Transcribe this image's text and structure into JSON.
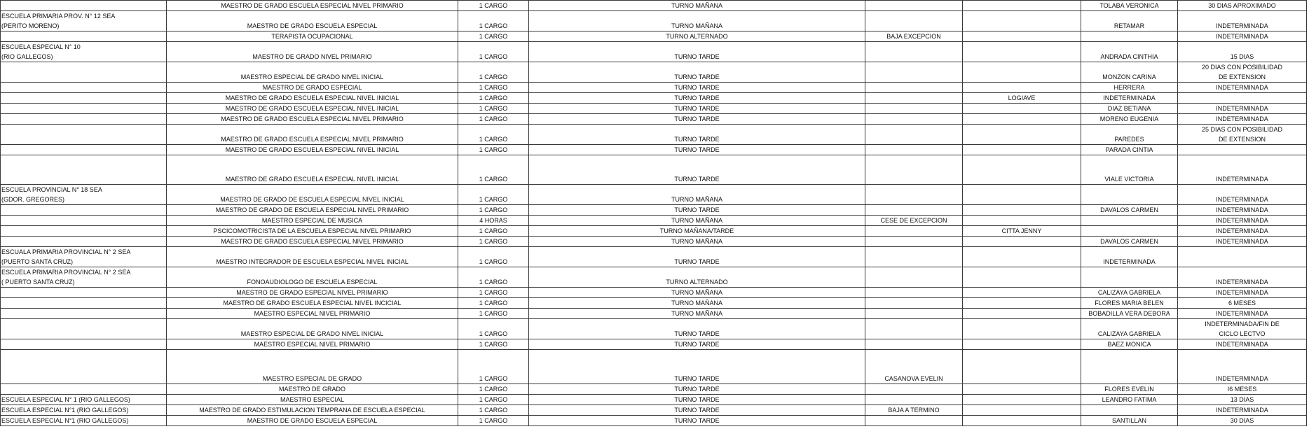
{
  "rows": [
    {
      "h": "h1",
      "cells": [
        "",
        "MAESTRO DE GRADO ESCUELA ESPECIAL NIVEL PRIMARIO",
        "1 CARGO",
        "TURNO MAÑANA",
        "",
        "",
        "TOLABA VERONICA",
        "30 DIAS APROXIMADO"
      ]
    },
    {
      "h": "h2",
      "cells": [
        "ESCUELA PRIMARIA PROV. N° 12 SEA\n(PERITO MORENO)",
        "MAESTRO DE GRADO ESCUELA ESPECIAL",
        "1 CARGO",
        "TURNO MAÑANA",
        "",
        "",
        "RETAMAR",
        "INDETERMINADA"
      ]
    },
    {
      "h": "h1",
      "cells": [
        "",
        "TERAPISTA OCUPACIONAL",
        "1 CARGO",
        "TURNO ALTERNADO",
        "BAJA EXCEPCION",
        "",
        "",
        "INDETERMINADA"
      ]
    },
    {
      "h": "h2",
      "cells": [
        "ESCUELA ESPECIAL N° 10\n(RIO GALLEGOS)",
        "MAESTRO DE GRADO NIVEL PRIMARIO",
        "1 CARGO",
        "TURNO TARDE",
        "",
        "",
        "ANDRADA CINTHIA",
        "15 DIAS"
      ]
    },
    {
      "h": "h2",
      "cells": [
        "",
        "MAESTRO ESPECIAL DE GRADO NIVEL INICIAL",
        "1 CARGO",
        "TURNO TARDE",
        "",
        "",
        "MONZON CARINA",
        "20 DIAS CON POSIBILIDAD\nDE EXTENSION"
      ]
    },
    {
      "h": "h1",
      "cells": [
        "",
        "MAESTRO DE GRADO ESPECIAL",
        "1 CARGO",
        "TURNO TARDE",
        "",
        "",
        "HERRERA",
        "INDETERMINADA"
      ]
    },
    {
      "h": "h1",
      "cells": [
        "",
        "MAESTRO DE GRADO ESCUELA ESPECIAL NIVEL INICIAL",
        "1 CARGO",
        "TURNO TARDE",
        "",
        "LOGIAVE",
        "INDETERMINADA",
        ""
      ]
    },
    {
      "h": "h1",
      "cells": [
        "",
        "MAESTRO DE GRADO ESCUELA ESPECIAL NIVEL INICIAL",
        "1 CARGO",
        "TURNO TARDE",
        "",
        "",
        "DIAZ BETIANA",
        "INDETERMINADA"
      ]
    },
    {
      "h": "h1",
      "cells": [
        "",
        "MAESTRO DE GRADO ESCUELA ESPECIAL NIVEL PRIMARIO",
        "1 CARGO",
        "TURNO TARDE",
        "",
        "",
        "MORENO EUGENIA",
        "INDETERMINADA"
      ]
    },
    {
      "h": "h2",
      "cells": [
        "",
        "MAESTRO DE GRADO ESCUELA ESPECIAL NIVEL PRIMARIO",
        "1 CARGO",
        "TURNO TARDE",
        "",
        "",
        "PAREDES",
        "25 DIAS CON POSIBILIDAD\nDE EXTENSION"
      ]
    },
    {
      "h": "h1",
      "cells": [
        "",
        "MAESTRO DE GRADO ESCUELA ESPECIAL NIVEL INICIAL",
        "1 CARGO",
        "TURNO TARDE",
        "",
        "",
        "PARADA CINTIA",
        ""
      ]
    },
    {
      "h": "h3a",
      "cells": [
        "",
        "MAESTRO DE GRADO ESCUELA ESPECIAL NIVEL INICIAL",
        "1 CARGO",
        "TURNO TARDE",
        "",
        "",
        "VIALE VICTORIA",
        "INDETERMINADA"
      ]
    },
    {
      "h": "h2",
      "cells": [
        "ESCUELA PROVINCIAL N° 18 SEA\n(GDOR. GREGORES)",
        "MAESTRO DE GRADO DE ESCUELA ESPECIAL NIVEL INICIAL",
        "1 CARGO",
        "TURNO MAÑANA",
        "",
        "",
        "",
        "INDETERMINADA"
      ]
    },
    {
      "h": "h1",
      "cells": [
        "",
        "MAESTRO DE GRADO DE ESCUELA ESPECIAL NIVEL PRIMARIO",
        "1 CARGO",
        "TURNO TARDE",
        "",
        "",
        "DAVALOS CARMEN",
        "INDETERMINADA"
      ]
    },
    {
      "h": "h1",
      "cells": [
        "",
        "MAESTRO ESPECIAL DE MUSICA",
        "4 HORAS",
        "TURNO MAÑANA",
        "CESE DE EXCEPCION",
        "",
        "",
        "INDETERMINADA"
      ]
    },
    {
      "h": "h1",
      "cells": [
        "",
        "PSCICOMOTRICISTA DE LA ESCUELA ESPECIAL NIVEL PRIMARIO",
        "1 CARGO",
        "TURNO MAÑANA/TARDE",
        "",
        "CITTA JENNY",
        "",
        "INDETERMINADA"
      ]
    },
    {
      "h": "h1",
      "cells": [
        "",
        "MAESTRO DE GRADO ESCUELA ESPECIAL NIVEL PRIMARIO",
        "1 CARGO",
        "TURNO MAÑANA",
        "",
        "",
        "DAVALOS CARMEN",
        "INDETERMINADA"
      ]
    },
    {
      "h": "h2",
      "cells": [
        "ESCUALA PRIMARIA PROVINCIAL N° 2 SEA\n(PUERTO SANTA CRUZ)",
        "MAESTRO INTEGRADOR DE ESCUELA ESPECIAL NIVEL INICIAL",
        "1 CARGO",
        "TURNO TARDE",
        "",
        "",
        "INDETERMINADA",
        ""
      ]
    },
    {
      "h": "h2",
      "cells": [
        "ESCUELA PRIMARIA PROVINCIAL N° 2 SEA\n( PUERTO SANTA CRUZ)",
        "FONOAUDIOLOGO DE ESCUELA ESPECIAL",
        "1 CARGO",
        "TURNO ALTERNADO",
        "",
        "",
        "",
        "INDETERMINADA"
      ]
    },
    {
      "h": "h1",
      "cells": [
        "",
        "MAESTRO DE GRADO ESPECIAL NIVEL PRIMARIO",
        "1 CARGO",
        "TURNO MAÑANA",
        "",
        "",
        "CALIZAYA GABRIELA",
        "INDETERMINADA"
      ]
    },
    {
      "h": "h1",
      "cells": [
        "",
        "MAESTRO DE GRADO ESCUELA ESPECIAL NIVEL INCICIAL",
        "1 CARGO",
        "TURNO MAÑANA",
        "",
        "",
        "FLORES MARIA BELEN",
        "6 MESES"
      ]
    },
    {
      "h": "h1",
      "cells": [
        "",
        "MAESTRO ESPECIAL NIVEL PRIMARIO",
        "1 CARGO",
        "TURNO MAÑANA",
        "",
        "",
        "BOBADILLA VERA DEBORA",
        "INDETERMINADA"
      ]
    },
    {
      "h": "h2",
      "cells": [
        "",
        "MAESTRO ESPECIAL DE GRADO NIVEL INICIAL",
        "1 CARGO",
        "TURNO TARDE",
        "",
        "",
        "CALIZAYA GABRIELA",
        "INDETERMINADA/FIN DE\nCICLO LECTVO"
      ]
    },
    {
      "h": "h1",
      "cells": [
        "",
        "MAESTRO ESPECIAL NIVEL PRIMARIO",
        "1 CARGO",
        "TURNO TARDE",
        "",
        "",
        "BAEZ MONICA",
        "INDETERMINADA"
      ]
    },
    {
      "h": "h3b",
      "cells": [
        "",
        "MAESTRO ESPECIAL DE GRADO",
        "1 CARGO",
        "TURNO TARDE",
        "CASANOVA EVELIN",
        "",
        "",
        "INDETERMINADA"
      ]
    },
    {
      "h": "h1",
      "cells": [
        "",
        "MAESTRO DE GRADO",
        "1 CARGO",
        "TURNO TARDE",
        "",
        "",
        "FLORES EVELIN",
        "I6 MESES"
      ]
    },
    {
      "h": "h1",
      "cells": [
        "ESCUELA ESPECIAL N° 1 (RIO GALLEGOS)",
        "MAESTRO ESPECIAL",
        "1 CARGO",
        "TURNO TARDE",
        "",
        "",
        "LEANDRO FATIMA",
        "13 DIAS"
      ]
    },
    {
      "h": "h1",
      "cells": [
        "ESCUELA ESPECIAL N°1 (RIO GALLEGOS)",
        "MAESTRO DE GRADO ESTIMULACION TEMPRANA DE ESCUELA ESPECIAL",
        "1 CARGO",
        "TURNO TARDE",
        "BAJA A TERMINO",
        "",
        "",
        "INDETERMINADA"
      ]
    },
    {
      "h": "h1",
      "cells": [
        "ESCUELA ESPECIAL N°1 (RIO GALLEGOS)",
        "MAESTRO DE GRADO ESCUELA ESPECIAL",
        "1 CARGO",
        "TURNO TARDE",
        "",
        "",
        "SANTILLAN",
        "30 DIAS"
      ]
    }
  ]
}
